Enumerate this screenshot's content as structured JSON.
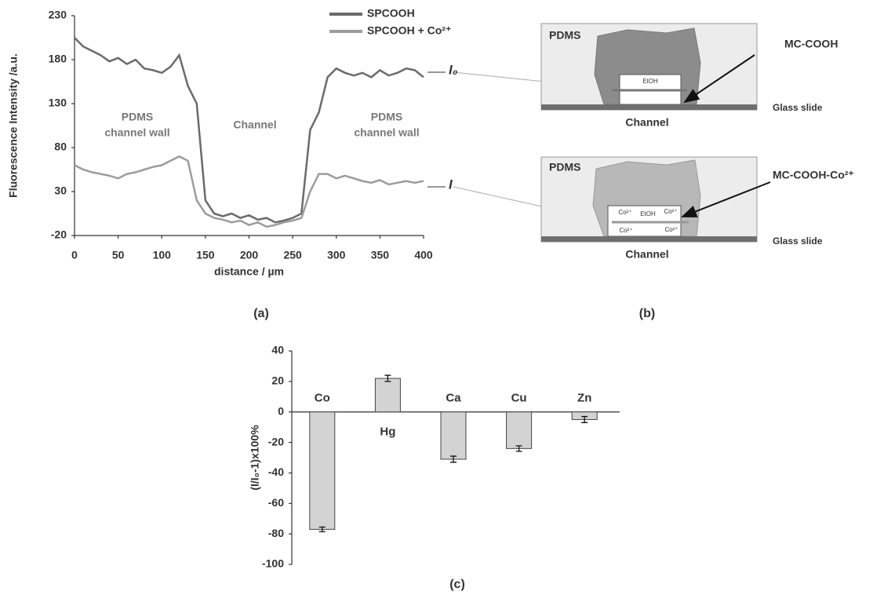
{
  "chart_data": [
    {
      "type": "line",
      "label": "(a)",
      "x_label": "distance / µm",
      "y_label": "Fluorescence Intensity /a.u.",
      "x": [
        0,
        10,
        20,
        30,
        40,
        50,
        60,
        70,
        80,
        90,
        100,
        110,
        120,
        130,
        140,
        150,
        160,
        170,
        180,
        190,
        200,
        210,
        220,
        230,
        240,
        250,
        260,
        270,
        280,
        290,
        300,
        310,
        320,
        330,
        340,
        350,
        360,
        370,
        380,
        390,
        400
      ],
      "series": [
        {
          "name": "SPCOOH",
          "color": "#6b6b6b",
          "values": [
            205,
            195,
            190,
            185,
            178,
            182,
            175,
            180,
            170,
            168,
            165,
            172,
            185,
            150,
            130,
            20,
            5,
            2,
            5,
            0,
            3,
            -2,
            0,
            -5,
            -3,
            0,
            5,
            100,
            120,
            160,
            170,
            165,
            162,
            165,
            160,
            168,
            162,
            165,
            170,
            168,
            160
          ]
        },
        {
          "name": "SPCOOH + Co²⁺",
          "color": "#9c9c9c",
          "values": [
            60,
            55,
            52,
            50,
            48,
            45,
            50,
            52,
            55,
            58,
            60,
            65,
            70,
            65,
            20,
            5,
            0,
            -2,
            -5,
            -3,
            -8,
            -5,
            -10,
            -8,
            -5,
            -3,
            0,
            30,
            50,
            50,
            45,
            48,
            45,
            42,
            40,
            43,
            38,
            40,
            42,
            40,
            42
          ]
        }
      ],
      "xlim": [
        0,
        400
      ],
      "xticks": [
        0,
        50,
        100,
        150,
        200,
        250,
        300,
        350,
        400
      ],
      "ylim": [
        -20,
        230
      ],
      "yticks": [
        -20,
        30,
        80,
        130,
        180,
        230
      ],
      "annotations": [
        "PDMS",
        "channel wall",
        "Channel",
        "PDMS",
        "channel wall",
        "I₀",
        "I"
      ]
    },
    {
      "type": "bar",
      "label": "(c)",
      "y_label": "(I/I₀-1)x100%",
      "categories": [
        "Co",
        "Hg",
        "Ca",
        "Cu",
        "Zn"
      ],
      "values": [
        -77,
        22,
        -31,
        -24,
        -5
      ],
      "errors": [
        1.5,
        2,
        2,
        1.8,
        2
      ],
      "color": "#d3d3d3",
      "ylim": [
        -100,
        40
      ],
      "yticks": [
        -100,
        -80,
        -60,
        -40,
        -20,
        0,
        20,
        40
      ]
    }
  ],
  "diagram": {
    "label": "(b)",
    "panels": [
      {
        "pdms": "PDMS",
        "callout": "MC-COOH",
        "glass": "Glass slide",
        "channel": "Channel",
        "inner": [
          "EtOH"
        ]
      },
      {
        "pdms": "PDMS",
        "callout": "MC-COOH-Co²⁺",
        "glass": "Glass slide",
        "channel": "Channel",
        "inner": [
          "Co²⁺",
          "EtOH",
          "Co²⁺",
          "Co²⁺",
          "Co²⁺"
        ]
      }
    ]
  }
}
